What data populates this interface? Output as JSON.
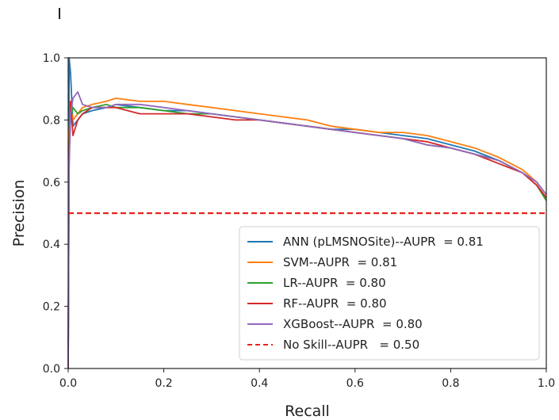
{
  "chart_data": {
    "type": "line",
    "title": "",
    "xlabel": "Recall",
    "ylabel": "Precision",
    "xlim": [
      0.0,
      1.0
    ],
    "ylim": [
      0.0,
      1.0
    ],
    "x_ticks": [
      "0.0",
      "0.2",
      "0.4",
      "0.6",
      "0.8",
      "1.0"
    ],
    "y_ticks": [
      "0.0",
      "0.2",
      "0.4",
      "0.6",
      "0.8",
      "1.0"
    ],
    "grid": false,
    "legend_position": "lower-right",
    "series": [
      {
        "name": "ANN (pLMSNOSite)--AUPR  = 0.81",
        "color": "#1f77b4",
        "dash": "solid",
        "x": [
          0.0,
          0.002,
          0.005,
          0.01,
          0.02,
          0.03,
          0.05,
          0.08,
          0.1,
          0.15,
          0.2,
          0.25,
          0.3,
          0.35,
          0.4,
          0.45,
          0.5,
          0.55,
          0.6,
          0.65,
          0.7,
          0.75,
          0.8,
          0.85,
          0.9,
          0.95,
          0.98,
          1.0
        ],
        "y": [
          0.0,
          1.0,
          0.95,
          0.78,
          0.8,
          0.82,
          0.83,
          0.84,
          0.85,
          0.84,
          0.83,
          0.83,
          0.82,
          0.81,
          0.8,
          0.79,
          0.78,
          0.77,
          0.77,
          0.76,
          0.75,
          0.74,
          0.72,
          0.7,
          0.67,
          0.63,
          0.59,
          0.55
        ]
      },
      {
        "name": "SVM--AUPR  = 0.81",
        "color": "#ff7f0e",
        "dash": "solid",
        "x": [
          0.0,
          0.002,
          0.005,
          0.01,
          0.02,
          0.03,
          0.05,
          0.08,
          0.1,
          0.15,
          0.2,
          0.25,
          0.3,
          0.35,
          0.4,
          0.45,
          0.5,
          0.55,
          0.6,
          0.65,
          0.7,
          0.75,
          0.8,
          0.85,
          0.9,
          0.95,
          0.98,
          1.0
        ],
        "y": [
          0.0,
          0.75,
          0.85,
          0.8,
          0.82,
          0.84,
          0.85,
          0.86,
          0.87,
          0.86,
          0.86,
          0.85,
          0.84,
          0.83,
          0.82,
          0.81,
          0.8,
          0.78,
          0.77,
          0.76,
          0.76,
          0.75,
          0.73,
          0.71,
          0.68,
          0.64,
          0.6,
          0.56
        ]
      },
      {
        "name": "LR--AUPR  = 0.80",
        "color": "#2ca02c",
        "dash": "solid",
        "x": [
          0.0,
          0.002,
          0.005,
          0.01,
          0.02,
          0.03,
          0.05,
          0.08,
          0.1,
          0.15,
          0.2,
          0.25,
          0.3,
          0.35,
          0.4,
          0.45,
          0.5,
          0.55,
          0.6,
          0.65,
          0.7,
          0.75,
          0.8,
          0.85,
          0.9,
          0.95,
          0.98,
          1.0
        ],
        "y": [
          0.0,
          0.7,
          0.8,
          0.84,
          0.82,
          0.83,
          0.84,
          0.85,
          0.84,
          0.84,
          0.83,
          0.82,
          0.82,
          0.81,
          0.8,
          0.79,
          0.78,
          0.77,
          0.76,
          0.75,
          0.74,
          0.72,
          0.71,
          0.69,
          0.67,
          0.63,
          0.59,
          0.54
        ]
      },
      {
        "name": "RF--AUPR  = 0.80",
        "color": "#d62728",
        "dash": "solid",
        "x": [
          0.0,
          0.002,
          0.005,
          0.01,
          0.02,
          0.03,
          0.05,
          0.08,
          0.1,
          0.15,
          0.2,
          0.25,
          0.3,
          0.35,
          0.4,
          0.45,
          0.5,
          0.55,
          0.6,
          0.65,
          0.7,
          0.75,
          0.8,
          0.85,
          0.9,
          0.95,
          0.98,
          1.0
        ],
        "y": [
          0.0,
          0.68,
          0.86,
          0.75,
          0.8,
          0.82,
          0.84,
          0.84,
          0.84,
          0.82,
          0.82,
          0.82,
          0.81,
          0.8,
          0.8,
          0.79,
          0.78,
          0.77,
          0.76,
          0.75,
          0.74,
          0.73,
          0.71,
          0.69,
          0.66,
          0.63,
          0.59,
          0.55
        ]
      },
      {
        "name": "XGBoost--AUPR  = 0.80",
        "color": "#9467bd",
        "dash": "solid",
        "x": [
          0.0,
          0.002,
          0.005,
          0.01,
          0.02,
          0.03,
          0.05,
          0.08,
          0.1,
          0.15,
          0.2,
          0.25,
          0.3,
          0.35,
          0.4,
          0.45,
          0.5,
          0.55,
          0.6,
          0.65,
          0.7,
          0.75,
          0.8,
          0.85,
          0.9,
          0.95,
          0.98,
          1.0
        ],
        "y": [
          0.0,
          0.65,
          0.82,
          0.87,
          0.89,
          0.85,
          0.84,
          0.84,
          0.85,
          0.85,
          0.84,
          0.83,
          0.82,
          0.81,
          0.8,
          0.79,
          0.78,
          0.77,
          0.76,
          0.75,
          0.74,
          0.72,
          0.71,
          0.69,
          0.67,
          0.63,
          0.6,
          0.56
        ]
      },
      {
        "name": "No Skill--AUPR   = 0.50",
        "color": "#e8231f",
        "dash": "dashed",
        "x": [
          0.0,
          1.0
        ],
        "y": [
          0.5,
          0.5
        ]
      }
    ]
  }
}
